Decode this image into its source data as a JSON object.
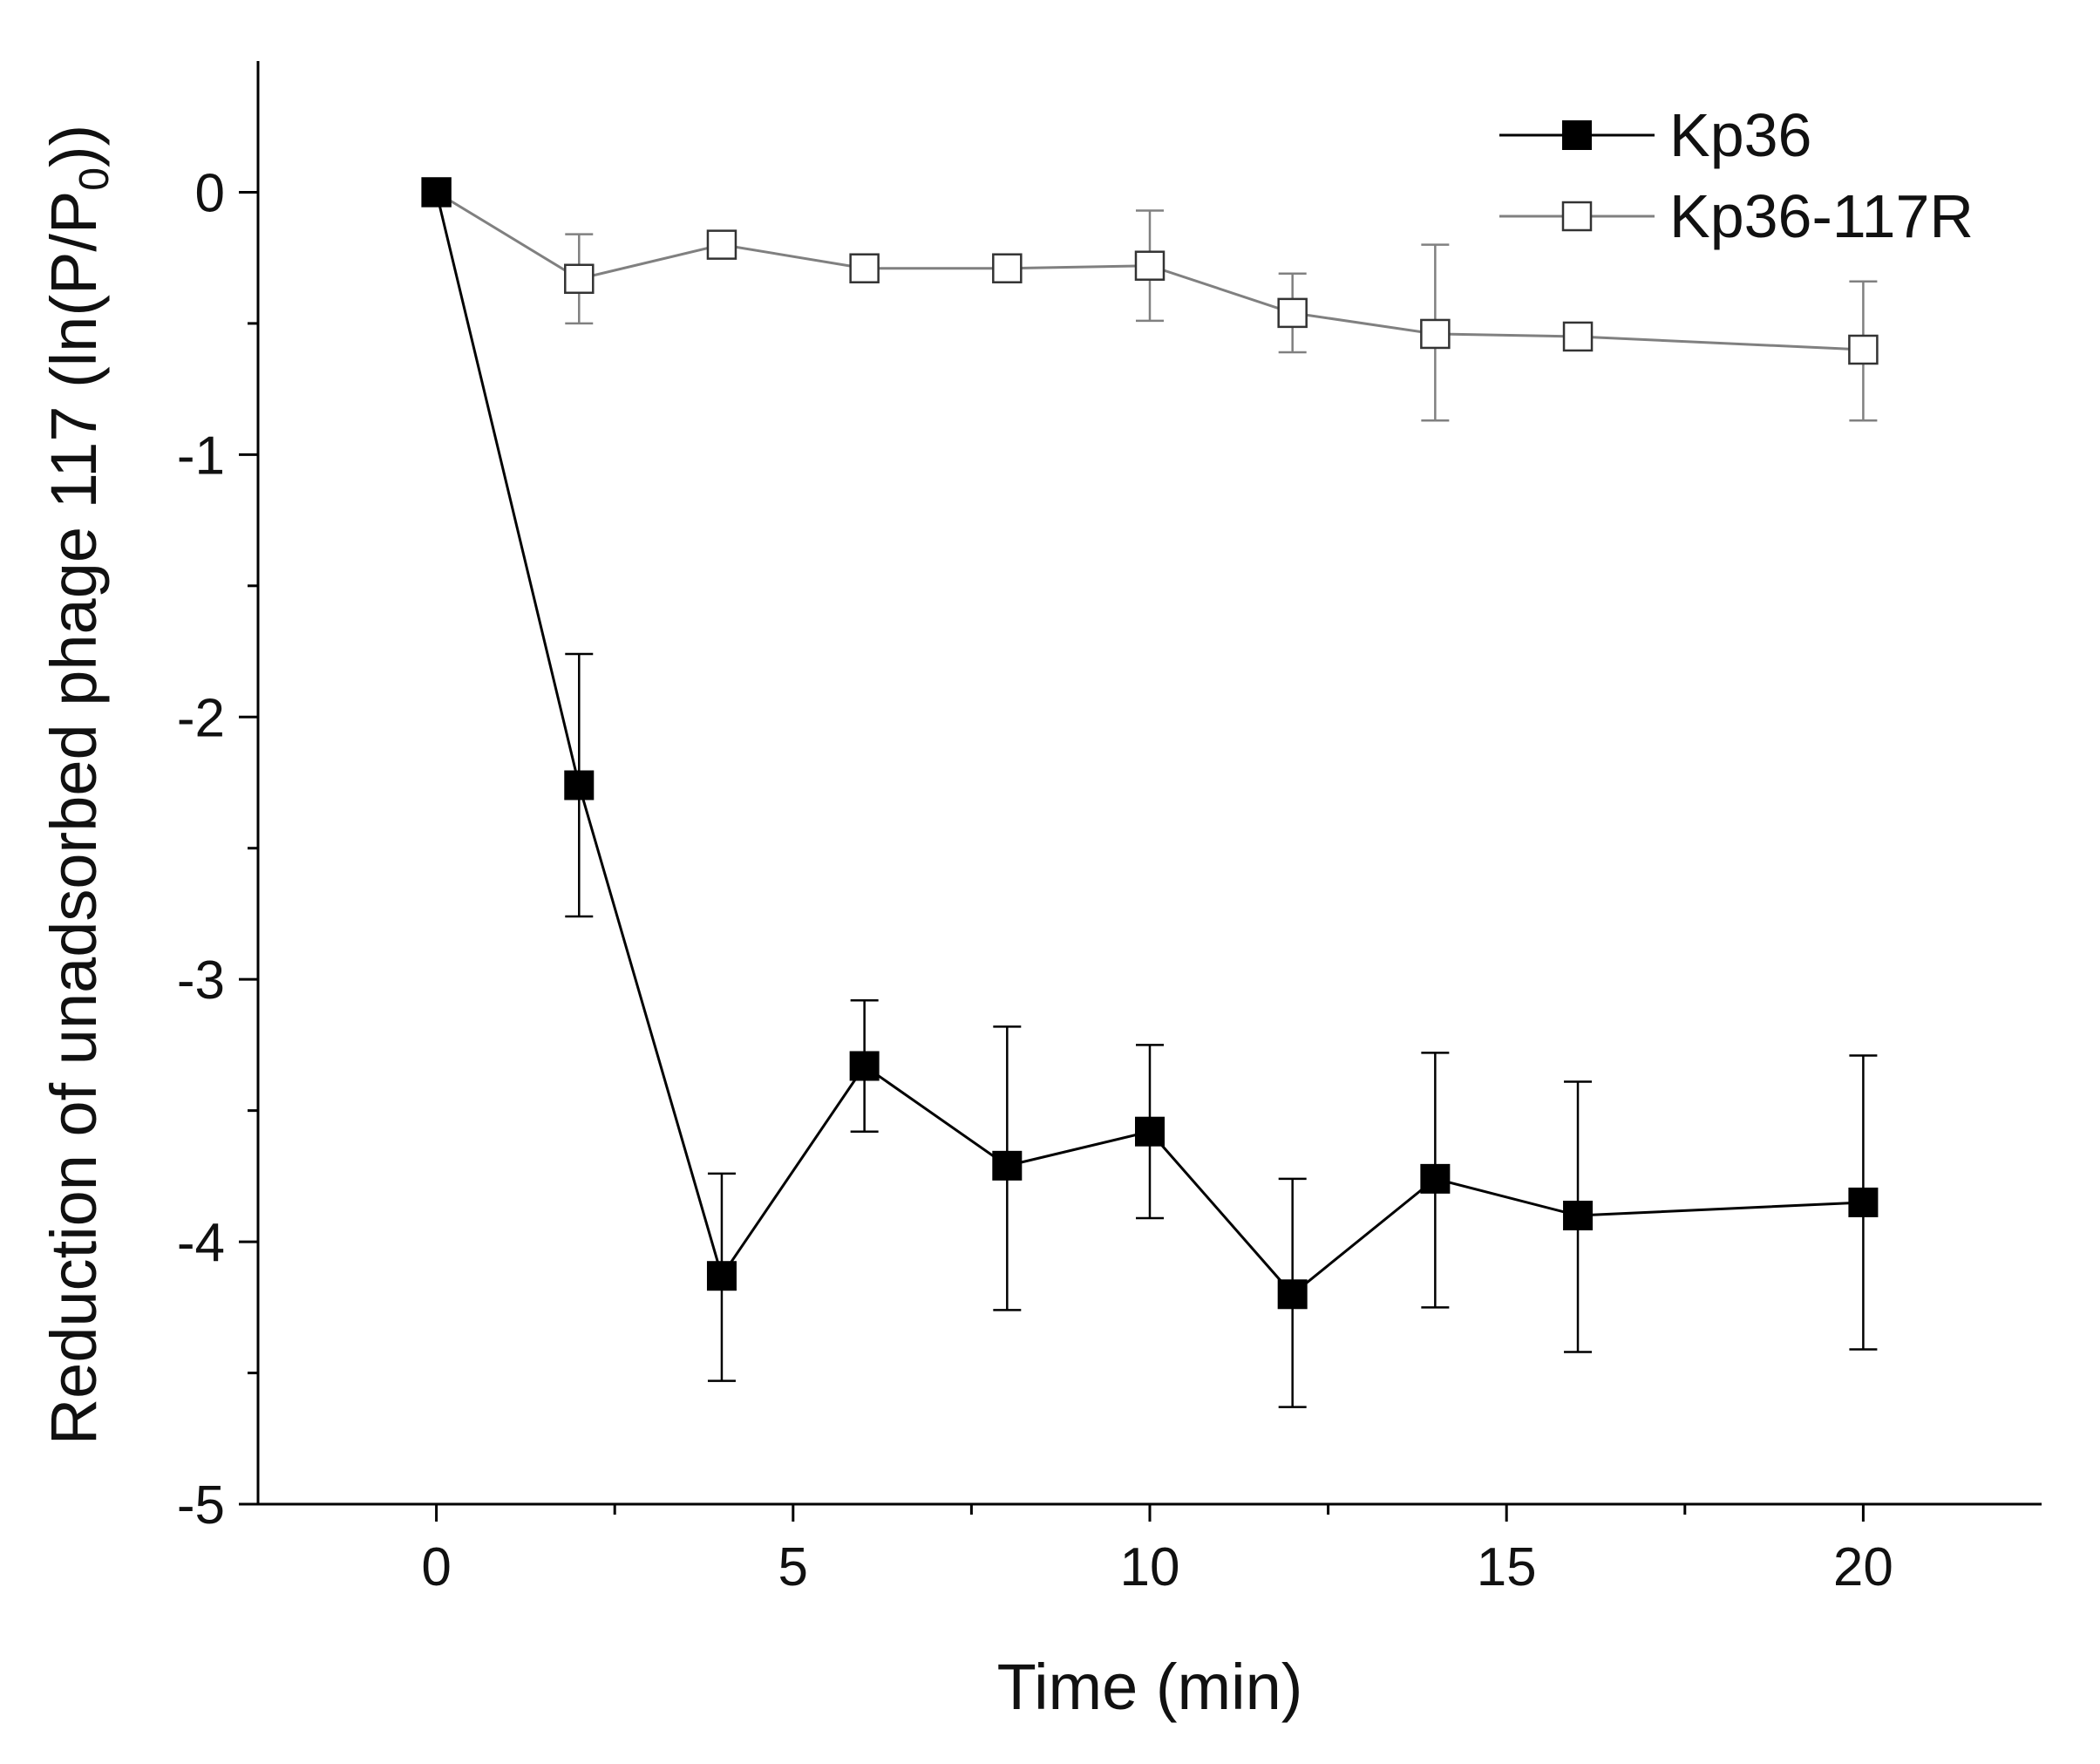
{
  "chart_data": {
    "type": "line",
    "title": "",
    "xlabel": "Time (min)",
    "ylabel_main": "Reduction of unadsorbed phage 117 (ln(P/P",
    "ylabel_sub": "0",
    "ylabel_end": "))",
    "xlim": [
      -2.5,
      22.5
    ],
    "ylim": [
      -5,
      0.5
    ],
    "xticks": [
      0,
      5,
      10,
      15,
      20
    ],
    "xtick_labels": [
      "0",
      "5",
      "10",
      "15",
      "20"
    ],
    "xminor": [
      2.5,
      7.5,
      12.5,
      17.5
    ],
    "yticks": [
      0,
      -1,
      -2,
      -3,
      -4,
      -5
    ],
    "ytick_labels": [
      "0",
      "-1",
      "-2",
      "-3",
      "-4",
      "-5"
    ],
    "yminor": [
      -0.5,
      -1.5,
      -2.5,
      -3.5,
      -4.5
    ],
    "legend_position": "top-right",
    "series": [
      {
        "name": "Kp36",
        "marker": "filled-square",
        "color": "#000000",
        "x": [
          0,
          2,
          4,
          6,
          8,
          10,
          12,
          14,
          16,
          20
        ],
        "y": [
          0,
          -2.26,
          -4.13,
          -3.33,
          -3.71,
          -3.58,
          -4.2,
          -3.76,
          -3.9,
          -3.85
        ],
        "err_low": [
          0,
          -2.76,
          -4.53,
          -3.58,
          -4.26,
          -3.91,
          -4.63,
          -4.25,
          -4.42,
          -4.41
        ],
        "err_high": [
          0,
          -1.76,
          -3.74,
          -3.08,
          -3.18,
          -3.25,
          -3.76,
          -3.28,
          -3.39,
          -3.29
        ]
      },
      {
        "name": "Kp36-117R",
        "marker": "open-square",
        "color": "#707070",
        "x": [
          0,
          2,
          4,
          6,
          8,
          10,
          12,
          14,
          16,
          20
        ],
        "y": [
          0,
          -0.33,
          -0.2,
          -0.29,
          -0.29,
          -0.28,
          -0.46,
          -0.54,
          -0.55,
          -0.6
        ],
        "err_low": [
          0,
          -0.5,
          -0.2,
          -0.29,
          -0.29,
          -0.49,
          -0.61,
          -0.87,
          -0.55,
          -0.87
        ],
        "err_high": [
          0,
          -0.16,
          -0.2,
          -0.29,
          -0.29,
          -0.07,
          -0.31,
          -0.2,
          -0.55,
          -0.34
        ]
      }
    ]
  }
}
